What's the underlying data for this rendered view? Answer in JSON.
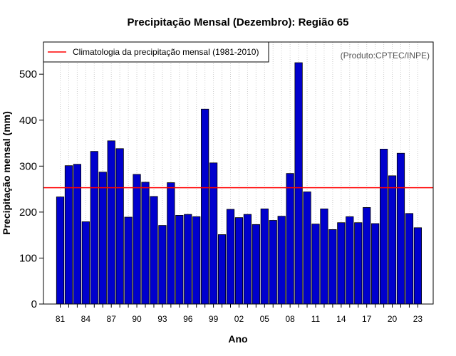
{
  "chart_data": {
    "type": "bar",
    "title": "Precipitação Mensal (Dezembro): Região 65",
    "xlabel": "Ano",
    "ylabel": "Precipitação mensal (mm)",
    "credit": "(Produto:CPTEC/INPE)",
    "ylim": [
      0,
      570
    ],
    "yticks": [
      0,
      100,
      200,
      300,
      400,
      500
    ],
    "categories": [
      "81",
      "82",
      "83",
      "84",
      "85",
      "86",
      "87",
      "88",
      "89",
      "90",
      "91",
      "92",
      "93",
      "94",
      "95",
      "96",
      "97",
      "98",
      "99",
      "00",
      "01",
      "02",
      "03",
      "04",
      "05",
      "06",
      "07",
      "08",
      "09",
      "10",
      "11",
      "12",
      "13",
      "14",
      "15",
      "16",
      "17",
      "18",
      "19",
      "20",
      "21",
      "22",
      "23"
    ],
    "values": [
      233,
      301,
      304,
      179,
      332,
      287,
      355,
      338,
      189,
      282,
      265,
      234,
      171,
      264,
      193,
      195,
      190,
      424,
      307,
      151,
      206,
      188,
      195,
      173,
      207,
      182,
      191,
      284,
      525,
      244,
      174,
      207,
      162,
      177,
      190,
      177,
      210,
      175,
      337,
      279,
      328,
      197,
      166
    ],
    "xtick_labels": [
      "81",
      "84",
      "87",
      "90",
      "93",
      "96",
      "99",
      "02",
      "05",
      "08",
      "11",
      "14",
      "17",
      "20",
      "23"
    ],
    "climatology": {
      "label": "Climatologia da precipitação mensal (1981-2010)",
      "value": 253,
      "color": "#ff0000"
    },
    "bar_color": "#0000cd",
    "legend_position": "top-left",
    "grid": "vertical dotted"
  }
}
